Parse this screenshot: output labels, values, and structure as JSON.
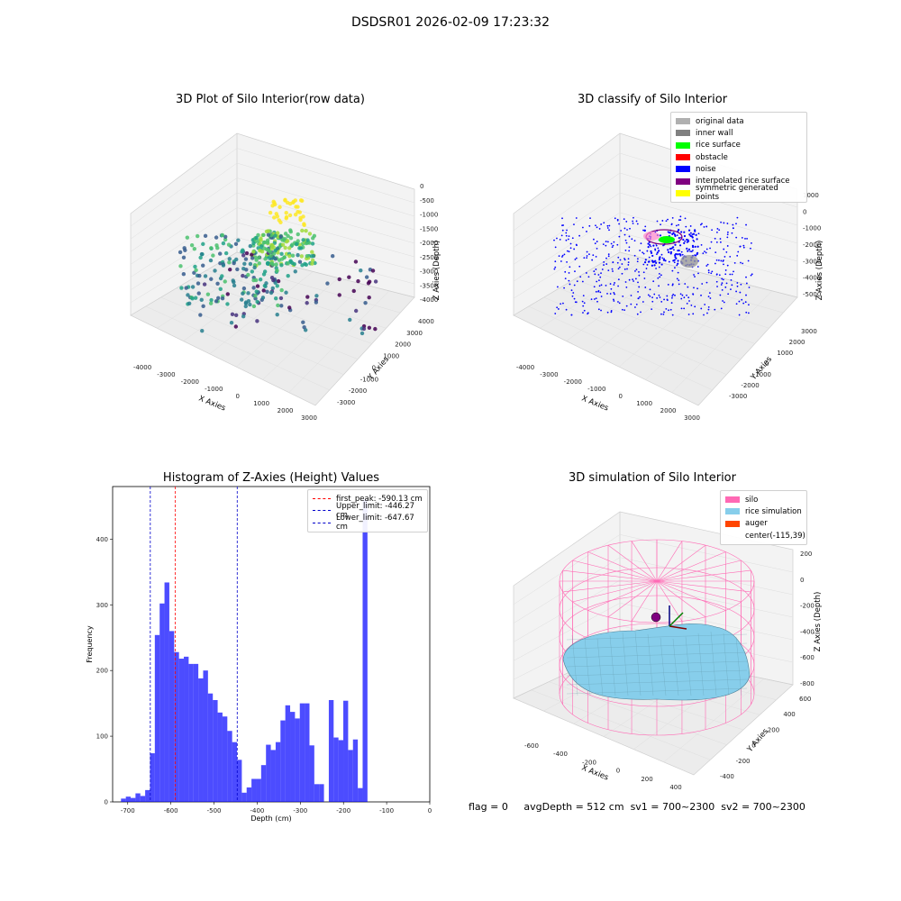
{
  "figure_title": "DSDSR01 2026-02-09 17:23:32",
  "status": {
    "flag": "flag = 0",
    "avg": "avgDepth = 512 cm",
    "sv1": "sv1 = 700~2300",
    "sv2": "sv2 = 700~2300"
  },
  "chart_data": [
    {
      "type": "scatter",
      "title": "3D Plot of Silo Interior(row data)",
      "xlabel": "X Axies",
      "ylabel": "Y Axies",
      "zlabel": "Z Axies (Depth)",
      "x_ticks": [
        "-4000",
        "-3000",
        "-2000",
        "-1000",
        "0",
        "1000",
        "2000",
        "3000"
      ],
      "y_ticks": [
        "-3000",
        "-2000",
        "-1000",
        "0",
        "1000",
        "2000",
        "3000",
        "4000"
      ],
      "z_ticks": [
        "0",
        "-500",
        "-1000",
        "-1500",
        "-2000",
        "-2500",
        "-3000",
        "-3500",
        "-4000"
      ],
      "colormap": "viridis",
      "grid": true
    },
    {
      "type": "scatter",
      "title": "3D classify of Silo Interior",
      "xlabel": "X Axies",
      "ylabel": "Y Axies",
      "zlabel": "Z Axies (Depth)",
      "x_ticks": [
        "-4000",
        "-3000",
        "-2000",
        "-1000",
        "0",
        "1000",
        "2000",
        "3000"
      ],
      "y_ticks": [
        "-3000",
        "-2000",
        "-1000",
        "0",
        "1000",
        "2000",
        "3000"
      ],
      "z_ticks": [
        "1000",
        "0",
        "-1000",
        "-2000",
        "-3000",
        "-4000",
        "-5000"
      ],
      "legend_position": "top-right",
      "series": [
        {
          "name": "original data",
          "color": "#b0b0b0"
        },
        {
          "name": "inner wall",
          "color": "#808080"
        },
        {
          "name": "rice surface",
          "color": "#00ff00"
        },
        {
          "name": "obstacle",
          "color": "#ff0000"
        },
        {
          "name": "noise",
          "color": "#0000ff"
        },
        {
          "name": "interpolated rice surface",
          "color": "#800080"
        },
        {
          "name": "symmetric generated points",
          "color": "#ffff00"
        }
      ],
      "grid": true
    },
    {
      "type": "bar",
      "title": "Histogram of Z-Axies (Height) Values",
      "xlabel": "Depth (cm)",
      "ylabel": "Frequency",
      "xlim": [
        -735,
        0
      ],
      "ylim": [
        0,
        480
      ],
      "x_ticks": [
        -700,
        -600,
        -500,
        -400,
        -300,
        -200,
        -100,
        0
      ],
      "y_ticks": [
        0,
        100,
        200,
        300,
        400
      ],
      "bin_width": 11.2,
      "bin_starts": [
        -715.6,
        -704.4,
        -693.2,
        -682.0,
        -670.8,
        -659.6,
        -648.4,
        -637.2,
        -626.0,
        -614.8,
        -603.6,
        -592.4,
        -581.2,
        -570.0,
        -558.8,
        -547.6,
        -536.4,
        -525.2,
        -514.0,
        -502.8,
        -491.6,
        -480.4,
        -469.2,
        -458.0,
        -446.8,
        -435.6,
        -424.4,
        -413.2,
        -402.0,
        -390.8,
        -379.6,
        -368.4,
        -357.2,
        -346.0,
        -334.8,
        -323.6,
        -312.4,
        -301.2,
        -290.0,
        -278.8,
        -267.6,
        -256.4,
        -245.2,
        -234.0,
        -222.8,
        -211.6,
        -200.4,
        -189.2,
        -178.0,
        -166.8,
        -155.6,
        -144.4,
        -133.2,
        -122.0,
        -110.8,
        -99.6,
        -88.4,
        -77.2,
        -66.0,
        -54.8,
        -43.6,
        -32.4,
        -21.2,
        -10.0
      ],
      "values": [
        5,
        8,
        6,
        13,
        9,
        18,
        74,
        254,
        302,
        334,
        260,
        228,
        218,
        221,
        210,
        210,
        188,
        200,
        165,
        155,
        136,
        130,
        108,
        91,
        64,
        14,
        22,
        35,
        35,
        56,
        87,
        79,
        91,
        124,
        147,
        137,
        127,
        150,
        150,
        86,
        27,
        27,
        0,
        155,
        98,
        94,
        154,
        79,
        95,
        21,
        460,
        0,
        0,
        0,
        0,
        0,
        0,
        0,
        0,
        0,
        0,
        0,
        0,
        0
      ],
      "bar_color": "#0000ff",
      "vlines": [
        {
          "name": "first_peak: -590.13 cm",
          "x": -590.13,
          "color": "#ff0000"
        },
        {
          "name": "Upper_limit: -446.27 cm",
          "x": -446.27,
          "color": "#0000cc"
        },
        {
          "name": "Lower_limit: -647.67 cm",
          "x": -647.67,
          "color": "#0000cc"
        }
      ],
      "legend_position": "top-right"
    },
    {
      "type": "scatter",
      "title": "3D simulation of Silo Interior",
      "xlabel": "X Axies",
      "ylabel": "Y Axies",
      "zlabel": "Z Axies (Depth)",
      "x_ticks": [
        "-600",
        "-400",
        "-200",
        "0",
        "200",
        "400"
      ],
      "y_ticks": [
        "-400",
        "-200",
        "0",
        "200",
        "400",
        "600"
      ],
      "z_ticks": [
        "200",
        "0",
        "-200",
        "-400",
        "-600",
        "-800"
      ],
      "legend_position": "top-right",
      "series": [
        {
          "name": "silo",
          "color": "#ff69b4"
        },
        {
          "name": "rice simulation",
          "color": "#87ceeb"
        },
        {
          "name": "auger",
          "color": "#ff4500"
        },
        {
          "name": "center(-115,39)",
          "color": ""
        }
      ],
      "grid": true
    }
  ]
}
